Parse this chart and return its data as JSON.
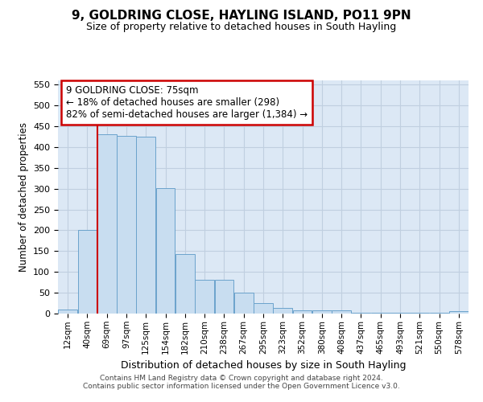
{
  "title": "9, GOLDRING CLOSE, HAYLING ISLAND, PO11 9PN",
  "subtitle": "Size of property relative to detached houses in South Hayling",
  "xlabel": "Distribution of detached houses by size in South Hayling",
  "ylabel": "Number of detached properties",
  "bar_color": "#c8ddf0",
  "bar_edge_color": "#6ba3cc",
  "grid_color": "#c0cfe0",
  "bg_color": "#dce8f5",
  "annotation_text": "9 GOLDRING CLOSE: 75sqm\n← 18% of detached houses are smaller (298)\n82% of semi-detached houses are larger (1,384) →",
  "annotation_box_color": "#ffffff",
  "annotation_box_edge": "#cc0000",
  "vline_color": "#cc0000",
  "vline_bin_index": 2,
  "categories": [
    "12sqm",
    "40sqm",
    "69sqm",
    "97sqm",
    "125sqm",
    "154sqm",
    "182sqm",
    "210sqm",
    "238sqm",
    "267sqm",
    "295sqm",
    "323sqm",
    "352sqm",
    "380sqm",
    "408sqm",
    "437sqm",
    "465sqm",
    "493sqm",
    "521sqm",
    "550sqm",
    "578sqm"
  ],
  "bar_heights": [
    10,
    200,
    430,
    427,
    425,
    301,
    143,
    82,
    82,
    50,
    25,
    13,
    8,
    8,
    8,
    2,
    2,
    1,
    1,
    1,
    5
  ],
  "ylim": [
    0,
    560
  ],
  "yticks": [
    0,
    50,
    100,
    150,
    200,
    250,
    300,
    350,
    400,
    450,
    500,
    550
  ],
  "footer_line1": "Contains HM Land Registry data © Crown copyright and database right 2024.",
  "footer_line2": "Contains public sector information licensed under the Open Government Licence v3.0."
}
